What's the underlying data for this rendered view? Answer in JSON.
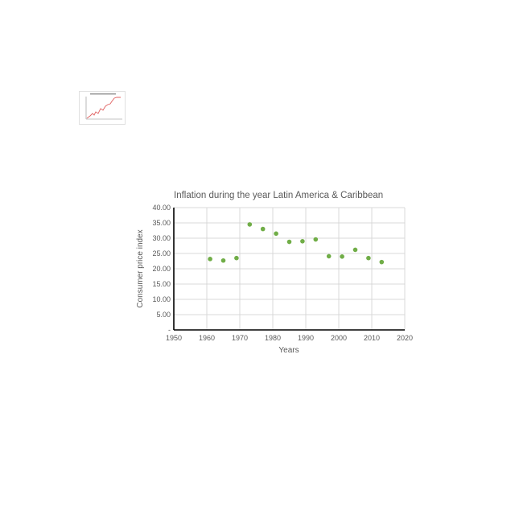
{
  "chart_data": [
    {
      "type": "line",
      "variant": "thumbnail",
      "title": "",
      "xlabel": "",
      "ylabel": "",
      "colors": {
        "line": "#e06060",
        "frame": "#bbbbbb"
      },
      "grid": false,
      "legend": "none"
    },
    {
      "type": "scatter",
      "title": "Inflation during the year Latin America & Caribbean",
      "xlabel": "Years",
      "ylabel": "Consumer price index",
      "xlim": [
        1950,
        2020
      ],
      "ylim": [
        0,
        40
      ],
      "x_ticks": [
        "1950",
        "1960",
        "1970",
        "1980",
        "1990",
        "2000",
        "2010",
        "2020"
      ],
      "y_ticks": [
        "-",
        "5.00",
        "10.00",
        "15.00",
        "20.00",
        "25.00",
        "30.00",
        "35.00",
        "40.00"
      ],
      "grid": true,
      "legend": "none",
      "colors": {
        "marker": "#70ad47"
      },
      "x": [
        1961,
        1965,
        1969,
        1973,
        1977,
        1981,
        1985,
        1989,
        1993,
        1997,
        2001,
        2005,
        2009,
        2013
      ],
      "y": [
        23.2,
        22.7,
        23.5,
        34.5,
        33.0,
        31.5,
        28.8,
        29.0,
        29.6,
        24.1,
        24.0,
        26.2,
        23.5,
        22.2
      ]
    }
  ]
}
